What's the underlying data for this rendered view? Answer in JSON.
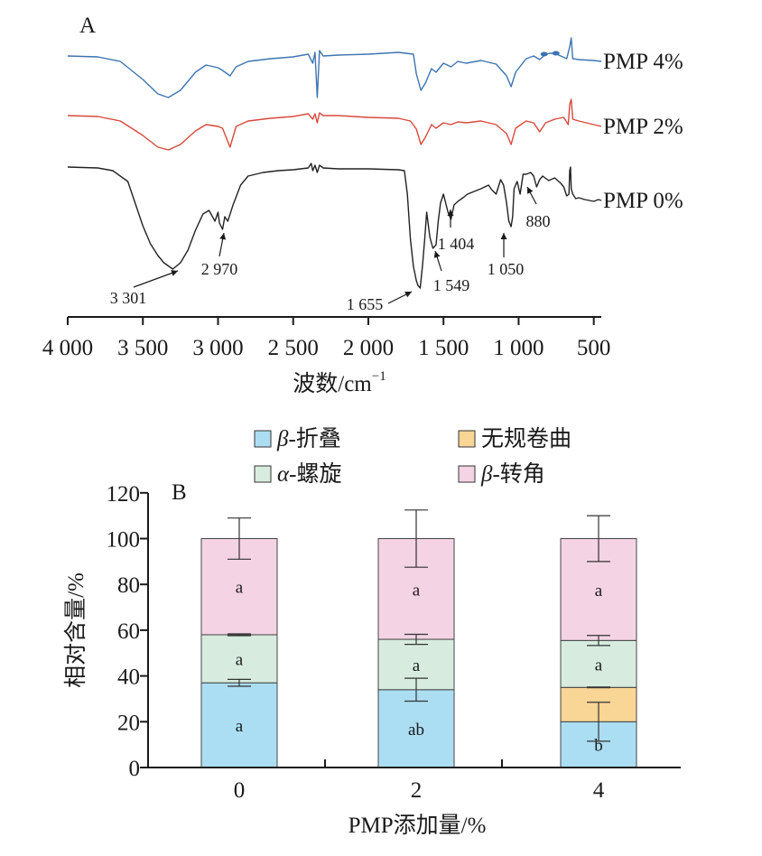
{
  "chart_data": [
    {
      "panel": "A",
      "type": "line",
      "xlabel": "波数/cm⁻¹",
      "xlim": [
        4000,
        450
      ],
      "x_reversed": true,
      "x_ticks": [
        {
          "value": 4000,
          "label": "4 000"
        },
        {
          "value": 3500,
          "label": "3 500"
        },
        {
          "value": 3000,
          "label": "3 000"
        },
        {
          "value": 2500,
          "label": "2 500"
        },
        {
          "value": 2000,
          "label": "2 000"
        },
        {
          "value": 1500,
          "label": "1 500"
        },
        {
          "value": 1000,
          "label": "1 000"
        },
        {
          "value": 500,
          "label": "500"
        }
      ],
      "series": [
        {
          "name": "PMP 4%",
          "color": "#3d74b1",
          "points": [
            [
              4000,
              0
            ],
            [
              3800,
              -1
            ],
            [
              3650,
              -6
            ],
            [
              3500,
              -26
            ],
            [
              3400,
              -42
            ],
            [
              3330,
              -46
            ],
            [
              3250,
              -38
            ],
            [
              3150,
              -18
            ],
            [
              3080,
              -10
            ],
            [
              3000,
              -13
            ],
            [
              2970,
              -16
            ],
            [
              2920,
              -22
            ],
            [
              2880,
              -12
            ],
            [
              2800,
              -6
            ],
            [
              2650,
              -3
            ],
            [
              2500,
              -1
            ],
            [
              2400,
              2
            ],
            [
              2370,
              -8
            ],
            [
              2355,
              4
            ],
            [
              2340,
              -46
            ],
            [
              2325,
              6
            ],
            [
              2300,
              0
            ],
            [
              2200,
              1
            ],
            [
              2000,
              2
            ],
            [
              1800,
              4
            ],
            [
              1700,
              2
            ],
            [
              1680,
              -20
            ],
            [
              1650,
              -38
            ],
            [
              1620,
              -30
            ],
            [
              1580,
              -14
            ],
            [
              1549,
              -18
            ],
            [
              1500,
              -8
            ],
            [
              1450,
              -12
            ],
            [
              1404,
              -6
            ],
            [
              1350,
              -8
            ],
            [
              1250,
              -5
            ],
            [
              1150,
              -9
            ],
            [
              1080,
              -22
            ],
            [
              1050,
              -34
            ],
            [
              1020,
              -18
            ],
            [
              950,
              -3
            ],
            [
              900,
              0
            ],
            [
              860,
              -4
            ],
            [
              820,
              2
            ],
            [
              790,
              3
            ],
            [
              760,
              3
            ],
            [
              720,
              0
            ],
            [
              680,
              -3
            ],
            [
              660,
              10
            ],
            [
              650,
              20
            ],
            [
              640,
              -3
            ],
            [
              600,
              -4
            ],
            [
              500,
              -5
            ],
            [
              450,
              -6
            ]
          ],
          "markers": [
            {
              "x": 830,
              "y": 2
            },
            {
              "x": 752,
              "y": 3
            }
          ]
        },
        {
          "name": "PMP 2%",
          "color": "#d9483b",
          "points": [
            [
              4000,
              0
            ],
            [
              3800,
              -1
            ],
            [
              3650,
              -6
            ],
            [
              3500,
              -22
            ],
            [
              3400,
              -35
            ],
            [
              3330,
              -38
            ],
            [
              3250,
              -32
            ],
            [
              3150,
              -17
            ],
            [
              3080,
              -10
            ],
            [
              3000,
              -12
            ],
            [
              2970,
              -14
            ],
            [
              2920,
              -35
            ],
            [
              2880,
              -12
            ],
            [
              2800,
              -6
            ],
            [
              2650,
              -3
            ],
            [
              2500,
              -1
            ],
            [
              2400,
              2
            ],
            [
              2370,
              -4
            ],
            [
              2355,
              2
            ],
            [
              2340,
              -8
            ],
            [
              2325,
              3
            ],
            [
              2300,
              0
            ],
            [
              2200,
              0
            ],
            [
              2000,
              -2
            ],
            [
              1800,
              -3
            ],
            [
              1720,
              -6
            ],
            [
              1680,
              -15
            ],
            [
              1650,
              -32
            ],
            [
              1620,
              -24
            ],
            [
              1580,
              -10
            ],
            [
              1549,
              -14
            ],
            [
              1500,
              -8
            ],
            [
              1450,
              -10
            ],
            [
              1404,
              -7
            ],
            [
              1350,
              -8
            ],
            [
              1250,
              -6
            ],
            [
              1150,
              -10
            ],
            [
              1080,
              -20
            ],
            [
              1050,
              -32
            ],
            [
              1020,
              -14
            ],
            [
              950,
              -6
            ],
            [
              900,
              -8
            ],
            [
              860,
              -18
            ],
            [
              820,
              -8
            ],
            [
              760,
              -4
            ],
            [
              700,
              -2
            ],
            [
              670,
              -10
            ],
            [
              660,
              12
            ],
            [
              650,
              18
            ],
            [
              640,
              -4
            ],
            [
              600,
              -6
            ],
            [
              500,
              -10
            ],
            [
              450,
              -12
            ]
          ]
        },
        {
          "name": "PMP 0%",
          "color": "#222222",
          "points": [
            [
              4000,
              0
            ],
            [
              3800,
              -1
            ],
            [
              3700,
              -4
            ],
            [
              3600,
              -16
            ],
            [
              3500,
              -65
            ],
            [
              3450,
              -85
            ],
            [
              3400,
              -98
            ],
            [
              3360,
              -106
            ],
            [
              3301,
              -113
            ],
            [
              3250,
              -106
            ],
            [
              3200,
              -92
            ],
            [
              3150,
              -70
            ],
            [
              3100,
              -52
            ],
            [
              3060,
              -48
            ],
            [
              3020,
              -60
            ],
            [
              3000,
              -50
            ],
            [
              2990,
              -62
            ],
            [
              2970,
              -69
            ],
            [
              2955,
              -55
            ],
            [
              2935,
              -60
            ],
            [
              2900,
              -42
            ],
            [
              2850,
              -20
            ],
            [
              2800,
              -10
            ],
            [
              2700,
              -6
            ],
            [
              2600,
              -4
            ],
            [
              2500,
              -3
            ],
            [
              2450,
              -2
            ],
            [
              2400,
              -1
            ],
            [
              2380,
              4
            ],
            [
              2370,
              -4
            ],
            [
              2355,
              2
            ],
            [
              2340,
              -6
            ],
            [
              2325,
              2
            ],
            [
              2300,
              -1
            ],
            [
              2200,
              -2
            ],
            [
              2000,
              -2
            ],
            [
              1800,
              -3
            ],
            [
              1760,
              -4
            ],
            [
              1740,
              -30
            ],
            [
              1720,
              -80
            ],
            [
              1700,
              -110
            ],
            [
              1680,
              -126
            ],
            [
              1670,
              -131
            ],
            [
              1655,
              -134
            ],
            [
              1640,
              -110
            ],
            [
              1625,
              -80
            ],
            [
              1612,
              -50
            ],
            [
              1600,
              -65
            ],
            [
              1590,
              -78
            ],
            [
              1570,
              -90
            ],
            [
              1549,
              -86
            ],
            [
              1535,
              -60
            ],
            [
              1520,
              -40
            ],
            [
              1500,
              -30
            ],
            [
              1470,
              -50
            ],
            [
              1450,
              -58
            ],
            [
              1430,
              -42
            ],
            [
              1404,
              -38
            ],
            [
              1370,
              -34
            ],
            [
              1340,
              -30
            ],
            [
              1310,
              -28
            ],
            [
              1280,
              -26
            ],
            [
              1250,
              -24
            ],
            [
              1200,
              -20
            ],
            [
              1180,
              -25
            ],
            [
              1150,
              -30
            ],
            [
              1120,
              -14
            ],
            [
              1100,
              -20
            ],
            [
              1080,
              -40
            ],
            [
              1065,
              -60
            ],
            [
              1050,
              -66
            ],
            [
              1040,
              -55
            ],
            [
              1030,
              -24
            ],
            [
              1010,
              -16
            ],
            [
              990,
              -30
            ],
            [
              970,
              -8
            ],
            [
              950,
              -8
            ],
            [
              920,
              -6
            ],
            [
              900,
              -10
            ],
            [
              880,
              -22
            ],
            [
              860,
              -14
            ],
            [
              840,
              -10
            ],
            [
              800,
              -15
            ],
            [
              760,
              -12
            ],
            [
              720,
              -18
            ],
            [
              700,
              -22
            ],
            [
              680,
              -32
            ],
            [
              665,
              -30
            ],
            [
              660,
              -4
            ],
            [
              655,
              0
            ],
            [
              650,
              -24
            ],
            [
              640,
              -30
            ],
            [
              620,
              -35
            ],
            [
              600,
              -34
            ],
            [
              560,
              -36
            ],
            [
              530,
              -37
            ],
            [
              500,
              -38
            ],
            [
              470,
              -36
            ],
            [
              450,
              -37
            ]
          ]
        }
      ],
      "annotations": [
        "3 301",
        "2 970",
        "1 655",
        "1 549",
        "1 404",
        "1 050",
        "880"
      ]
    },
    {
      "panel": "B",
      "type": "bar",
      "stacked": true,
      "categories": [
        "0",
        "2",
        "4"
      ],
      "xlabel": "PMP添加量/%",
      "ylabel": "相对含量/%",
      "ylim": [
        0,
        120
      ],
      "yticks": [
        0,
        20,
        40,
        60,
        80,
        100,
        120
      ],
      "legend_placement": "top",
      "series": [
        {
          "name": "β-折叠",
          "color": "#abdef2",
          "values": [
            37,
            34,
            20
          ],
          "errors": [
            1.5,
            5,
            8.5
          ],
          "letters": [
            "a",
            "ab",
            "b"
          ]
        },
        {
          "name": "无规卷曲",
          "color": "#f9d596",
          "values": [
            0,
            0,
            15
          ],
          "errors": [
            0,
            0,
            0
          ],
          "letters": [
            "",
            "",
            ""
          ]
        },
        {
          "name": "α-螺旋",
          "color": "#d7ecdf",
          "values": [
            21,
            22,
            20.5
          ],
          "errors": [
            0.4,
            2.2,
            2.2
          ],
          "letters": [
            "a",
            "a",
            "a"
          ]
        },
        {
          "name": "β-转角",
          "color": "#f3d3e4",
          "values": [
            42,
            44,
            44.5
          ],
          "errors": [
            9,
            12.5,
            10
          ],
          "letters": [
            "a",
            "a",
            "a"
          ]
        }
      ]
    }
  ],
  "labels": {
    "panel_a": "A",
    "panel_b": "B",
    "x_unit_base": "波数/cm",
    "x_unit_sup": "−1"
  }
}
